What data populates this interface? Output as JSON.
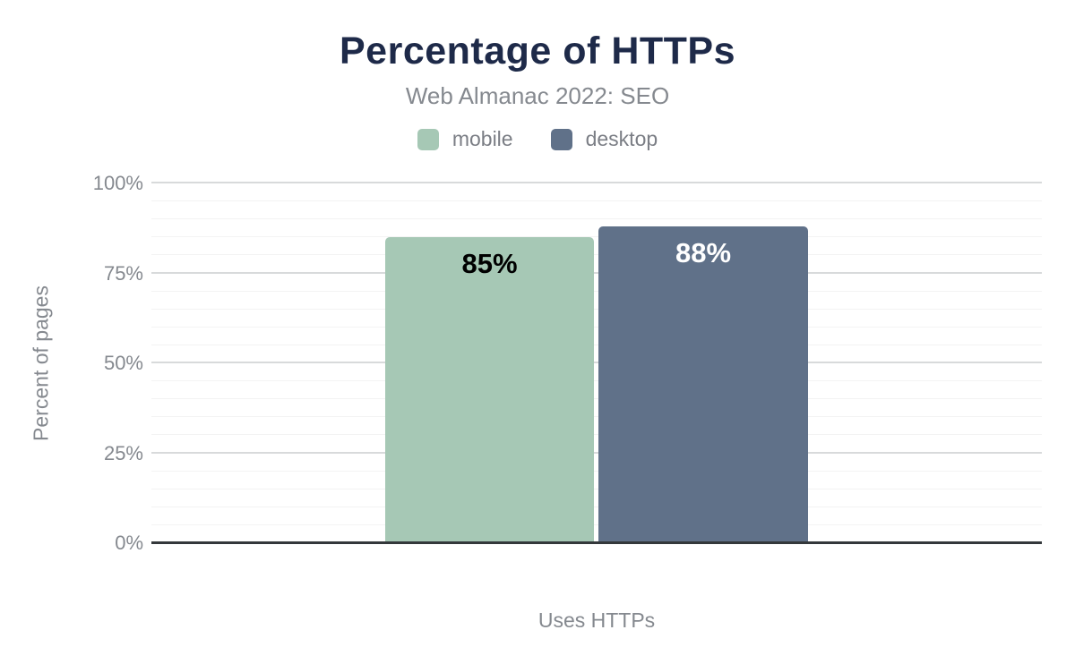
{
  "header": {
    "title": "Percentage of HTTPs",
    "subtitle": "Web Almanac 2022: SEO"
  },
  "chart_data": {
    "type": "bar",
    "title": "Percentage of HTTPs",
    "subtitle": "Web Almanac 2022: SEO",
    "categories": [
      "Uses HTTPs"
    ],
    "series": [
      {
        "name": "mobile",
        "values": [
          85
        ],
        "data_labels": [
          "85%"
        ],
        "color": "#a6c8b5",
        "label_color": "#000000"
      },
      {
        "name": "desktop",
        "values": [
          88
        ],
        "data_labels": [
          "88%"
        ],
        "color": "#607189",
        "label_color": "#ffffff"
      }
    ],
    "xlabel": "Uses HTTPs",
    "ylabel": "Percent of pages",
    "ylim": [
      0,
      100
    ],
    "yticks": [
      {
        "value": 0,
        "label": "0%"
      },
      {
        "value": 25,
        "label": "25%"
      },
      {
        "value": 50,
        "label": "50%"
      },
      {
        "value": 75,
        "label": "75%"
      },
      {
        "value": 100,
        "label": "100%"
      }
    ],
    "grid": {
      "minor_step": 5,
      "major_step": 25,
      "minor_color": "#f3f3f3",
      "major_color": "#d8dadb"
    },
    "legend_position": "top"
  },
  "colors": {
    "title": "#1e2a49",
    "text_muted": "#85898f",
    "axis_line": "#34383b",
    "background": "#ffffff"
  }
}
